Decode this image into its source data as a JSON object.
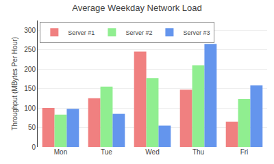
{
  "chart_data": {
    "type": "bar",
    "title": "Average Weekday Network Load",
    "categories": [
      "Mon",
      "Tue",
      "Wed",
      "Thu",
      "Fri"
    ],
    "series": [
      {
        "name": "Server #1",
        "values": [
          100,
          125,
          245,
          147,
          65
        ],
        "color": "#F08080"
      },
      {
        "name": "Server #2",
        "values": [
          83,
          155,
          177,
          210,
          123
        ],
        "color": "#90EE90"
      },
      {
        "name": "Server #3",
        "values": [
          98,
          85,
          55,
          265,
          158
        ],
        "color": "#6495ED"
      }
    ],
    "ylabel": "Throughput (MBytes Per Hour)",
    "ylim": [
      0,
      325
    ],
    "yticks": [
      0,
      50,
      100,
      150,
      200,
      250,
      300
    ],
    "grid": true,
    "legend": "upper left"
  }
}
